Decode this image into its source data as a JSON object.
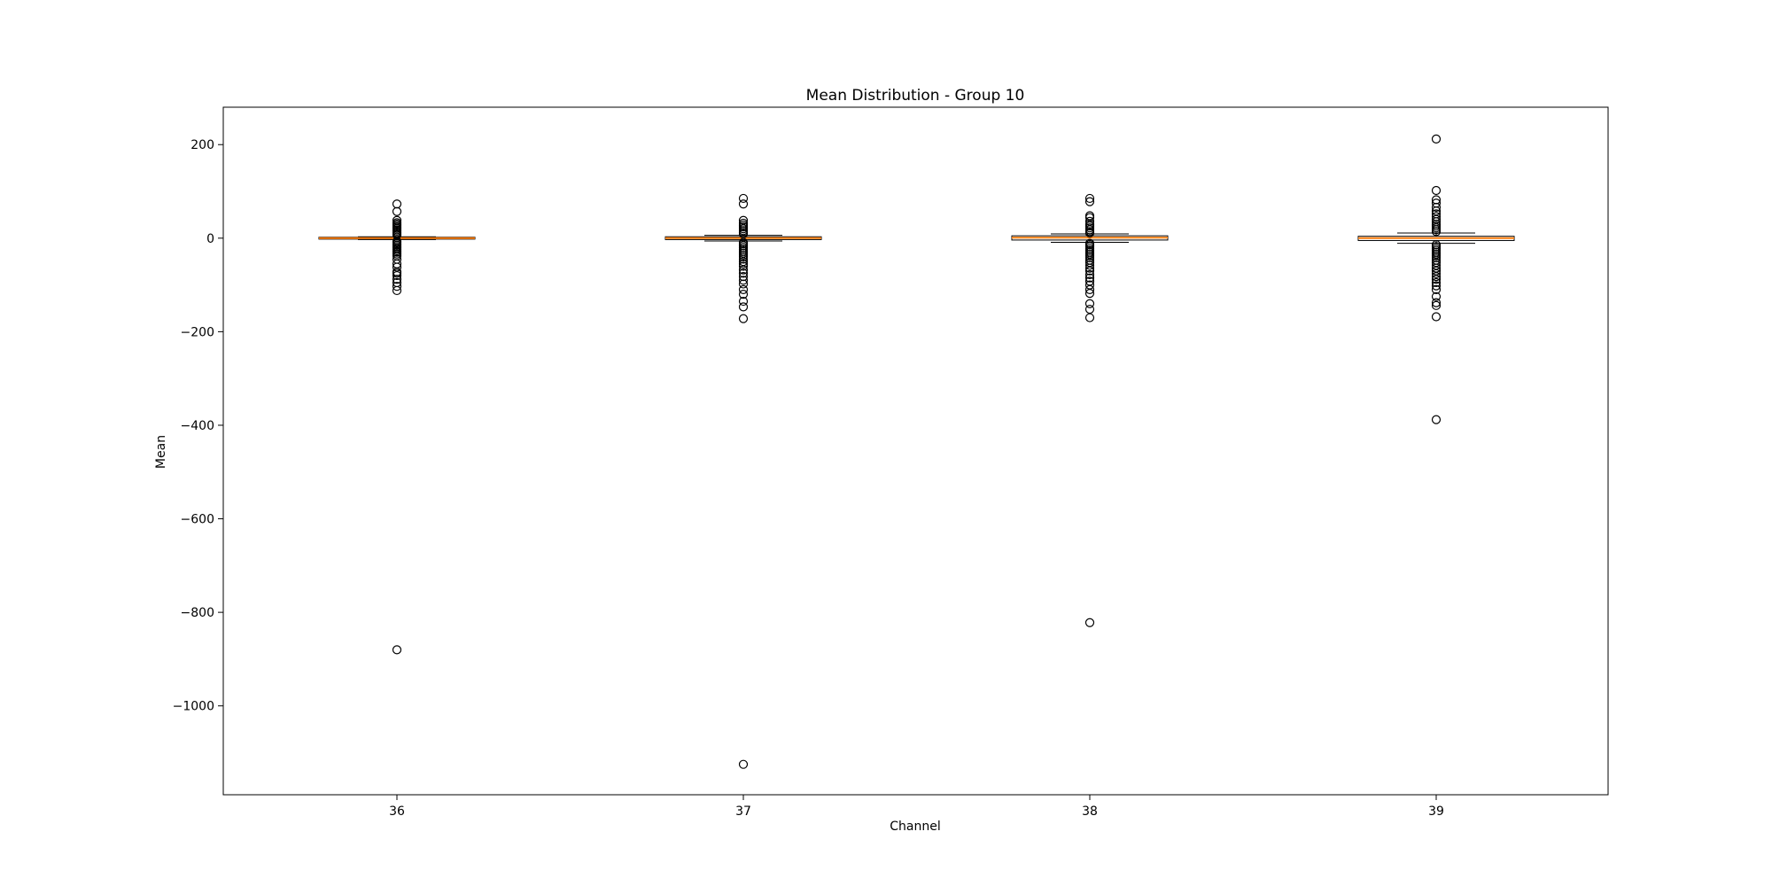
{
  "chart_data": {
    "type": "boxplot",
    "title": "Mean Distribution - Group 10",
    "xlabel": "Channel",
    "ylabel": "Mean",
    "categories": [
      "36",
      "37",
      "38",
      "39"
    ],
    "ylim": [
      -1190,
      280
    ],
    "yticks": [
      200,
      0,
      -200,
      -400,
      -600,
      -800,
      -1000
    ],
    "ytick_labels": [
      "200",
      "0",
      "−200",
      "−400",
      "−600",
      "−800",
      "−1000"
    ],
    "grid": false,
    "legend": "none",
    "colors": {
      "median": "#ff7f0e",
      "box": "#000000",
      "flier": "#000000"
    },
    "series": [
      {
        "category": "36",
        "q1": -2,
        "median": 0,
        "q3": 2,
        "whisker_low": -3,
        "whisker_high": 3,
        "fliers": [
          73,
          57,
          38,
          33,
          30,
          27,
          24,
          21,
          18,
          15,
          12,
          9,
          7,
          -7,
          -9,
          -12,
          -15,
          -18,
          -21,
          -24,
          -27,
          -30,
          -34,
          -38,
          -45,
          -55,
          -62,
          -72,
          -75,
          -80,
          -88,
          -95,
          -103,
          -112,
          -880
        ]
      },
      {
        "category": "37",
        "q1": -3,
        "median": 0,
        "q3": 3,
        "whisker_low": -6,
        "whisker_high": 6,
        "fliers": [
          85,
          73,
          38,
          32,
          28,
          24,
          20,
          16,
          12,
          9,
          -9,
          -12,
          -16,
          -20,
          -24,
          -28,
          -32,
          -36,
          -40,
          -45,
          -50,
          -55,
          -60,
          -68,
          -75,
          -82,
          -90,
          -98,
          -110,
          -120,
          -135,
          -147,
          -172,
          -1125
        ]
      },
      {
        "category": "38",
        "q1": -4,
        "median": 1,
        "q3": 5,
        "whisker_low": -9,
        "whisker_high": 9,
        "fliers": [
          85,
          78,
          48,
          44,
          36,
          30,
          26,
          22,
          18,
          14,
          11,
          -11,
          -14,
          -18,
          -22,
          -26,
          -30,
          -34,
          -38,
          -42,
          -47,
          -52,
          -58,
          -64,
          -70,
          -78,
          -85,
          -92,
          -100,
          -110,
          -118,
          -140,
          -152,
          -170,
          -822
        ]
      },
      {
        "category": "39",
        "q1": -5,
        "median": 0,
        "q3": 4,
        "whisker_low": -11,
        "whisker_high": 11,
        "fliers": [
          212,
          102,
          82,
          75,
          66,
          58,
          52,
          46,
          40,
          35,
          30,
          26,
          22,
          18,
          14,
          -14,
          -18,
          -22,
          -26,
          -30,
          -34,
          -38,
          -42,
          -47,
          -52,
          -58,
          -64,
          -70,
          -76,
          -82,
          -88,
          -95,
          -102,
          -110,
          -125,
          -138,
          -144,
          -168,
          -388
        ]
      }
    ]
  }
}
